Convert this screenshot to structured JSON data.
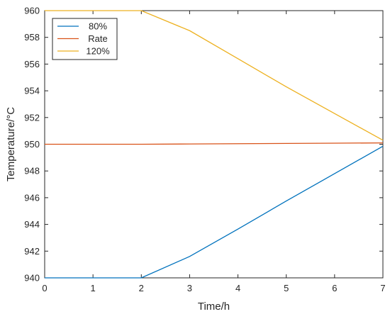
{
  "chart_data": {
    "type": "line",
    "title": "",
    "xlabel": "Time/h",
    "ylabel": "Temperature/°C",
    "xlim": [
      0,
      7
    ],
    "ylim": [
      940,
      960
    ],
    "xticks": [
      0,
      1,
      2,
      3,
      4,
      5,
      6,
      7
    ],
    "yticks": [
      940,
      942,
      944,
      946,
      948,
      950,
      952,
      954,
      956,
      958,
      960
    ],
    "grid": false,
    "legend_position": "top-left",
    "series": [
      {
        "name": "80%",
        "color": "#0072BD",
        "x": [
          0,
          1,
          2,
          3,
          4,
          5,
          6,
          7
        ],
        "y": [
          940.0,
          940.0,
          940.0,
          941.6,
          943.65,
          945.75,
          947.8,
          949.85
        ]
      },
      {
        "name": "Rate",
        "color": "#D95319",
        "x": [
          0,
          1,
          2,
          3,
          4,
          5,
          6,
          7
        ],
        "y": [
          950.0,
          950.0,
          950.0,
          950.02,
          950.04,
          950.06,
          950.08,
          950.1
        ]
      },
      {
        "name": "120%",
        "color": "#EDB120",
        "x": [
          0,
          1,
          2,
          3,
          4,
          5,
          6,
          7
        ],
        "y": [
          960.0,
          960.0,
          960.0,
          958.5,
          956.4,
          954.3,
          952.3,
          950.3
        ]
      }
    ]
  }
}
